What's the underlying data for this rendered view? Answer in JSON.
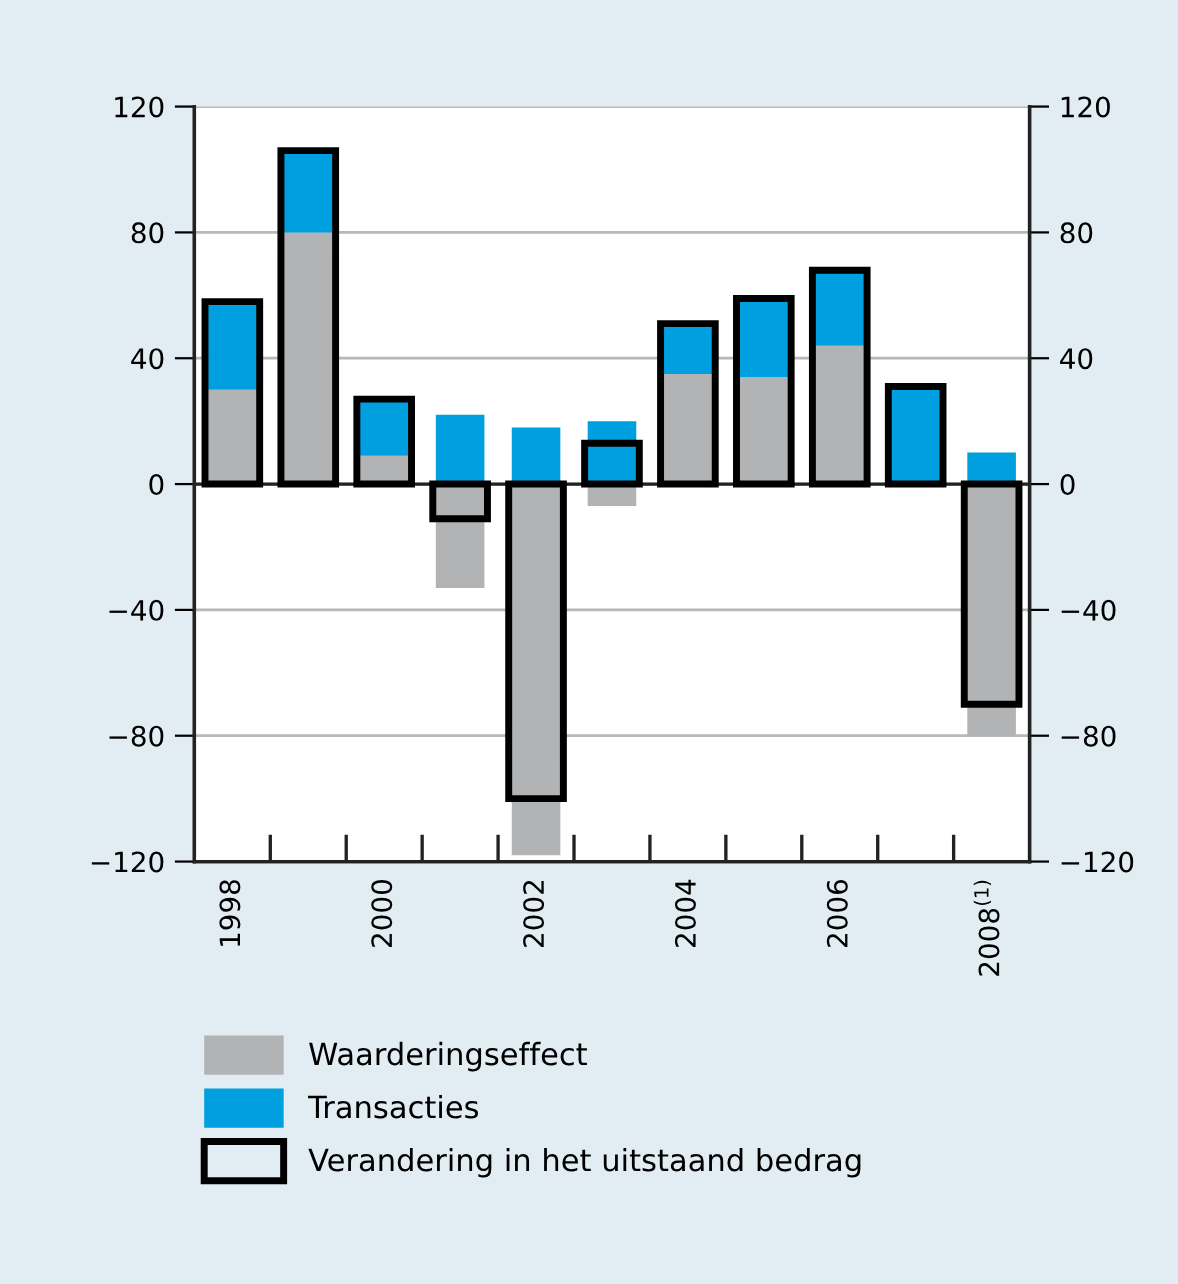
{
  "chart_data": {
    "type": "bar",
    "stacked": true,
    "categories": [
      "1998",
      null,
      "2000",
      null,
      "2002",
      null,
      "2004",
      null,
      "2006",
      null,
      "2008$^{(1)}$"
    ],
    "series": [
      {
        "name": "Waarderingseffect",
        "color": "#b2b3b5",
        "values": [
          30,
          80,
          9,
          -33,
          -118,
          -7,
          35,
          34,
          44,
          0,
          -80
        ]
      },
      {
        "name": "Transacties",
        "color": "#009fdf",
        "values": [
          28,
          26,
          18,
          22,
          18,
          20,
          16,
          25,
          24,
          31,
          10
        ]
      },
      {
        "name": "Verandering in het uitstaand bedrag",
        "color": "#000000",
        "line_style": "solid",
        "axis": "y2",
        "values": [
          58,
          106,
          27,
          -11,
          -100,
          13,
          51,
          59,
          68,
          31,
          -70
        ]
      }
    ],
    "ylim": [
      -120,
      120
    ],
    "yticks": [
      {
        "value": -120,
        "label": "−120"
      },
      {
        "value": -80,
        "label": "−80"
      },
      {
        "value": -40,
        "label": "−40"
      },
      0,
      40,
      80,
      120
    ],
    "y2lim": [
      -120,
      120
    ],
    "y2ticks": [
      {
        "value": -120,
        "label": "−120"
      },
      {
        "value": -80,
        "label": "−80"
      },
      {
        "value": -40,
        "label": "−40"
      },
      0,
      40,
      80,
      120
    ],
    "grid": "y",
    "legend": "bottom"
  }
}
